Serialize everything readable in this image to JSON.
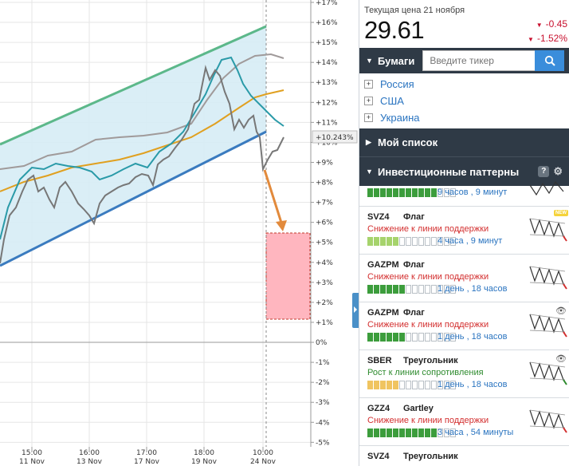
{
  "chart": {
    "y_ticks": [
      "+17%",
      "+16%",
      "+15%",
      "+14%",
      "+13%",
      "+12%",
      "+11%",
      "+10%",
      "+9%",
      "+8%",
      "+7%",
      "+6%",
      "+5%",
      "+4%",
      "+3%",
      "+2%",
      "+1%",
      "0%",
      "-1%",
      "-2%",
      "-3%",
      "-4%",
      "-5%"
    ],
    "x_ticks": [
      {
        "time": "15:00",
        "date": "11 Nov"
      },
      {
        "time": "16:00",
        "date": "13 Nov"
      },
      {
        "time": "17:00",
        "date": "17 Nov"
      },
      {
        "time": "18:00",
        "date": "19 Nov"
      },
      {
        "time": "10:00",
        "date": "24 Nov"
      }
    ],
    "current_label": "+10.243%",
    "colors": {
      "channel_top": "#5cb88a",
      "channel_bottom": "#3a7bbf",
      "channel_fill": "#d6ecf5",
      "price": "#777777",
      "ma_short": "#2a9aa8",
      "ma_mid": "#e0a020",
      "ma_long": "#a09a9a",
      "target_box": "#ffb6bf",
      "arrow": "#e28a3c"
    }
  },
  "price": {
    "label": "Текущая цена 21 ноября",
    "value": "29.61",
    "change_abs": "-0.45",
    "change_pct": "-1.52%",
    "color_down": "#c8102e"
  },
  "securities": {
    "title": "Бумаги",
    "search_placeholder": "Введите тикер",
    "search_icon": "search-icon",
    "items": [
      "Россия",
      "США",
      "Украина"
    ]
  },
  "watchlist": {
    "title": "Мой список"
  },
  "patterns": {
    "title": "Инвестиционные паттерны",
    "help": "?",
    "list": [
      {
        "ticker": "",
        "type": "",
        "signal": "",
        "time": "9 часов , 9 минут"
      },
      {
        "ticker": "SVZ4",
        "type": "Флаг",
        "signal": "Снижение к линии поддержки",
        "time": "4 часа , 9 минут",
        "badge": "NEW"
      },
      {
        "ticker": "GAZPM",
        "type": "Флаг",
        "signal": "Снижение к линии поддержки",
        "time": "1 день , 18 часов"
      },
      {
        "ticker": "GAZPM",
        "type": "Флаг",
        "signal": "Снижение к линии поддержки",
        "time": "1 день , 18 часов"
      },
      {
        "ticker": "SBER",
        "type": "Треугольник",
        "signal": "Рост к линии сопротивления",
        "time": "1 день , 18 часов"
      },
      {
        "ticker": "GZZ4",
        "type": "Gartley",
        "signal": "Снижение к линии поддержки",
        "time": "3 часа , 54 минуты"
      },
      {
        "ticker": "SVZ4",
        "type": "Треугольник",
        "signal": "",
        "time": ""
      }
    ]
  }
}
